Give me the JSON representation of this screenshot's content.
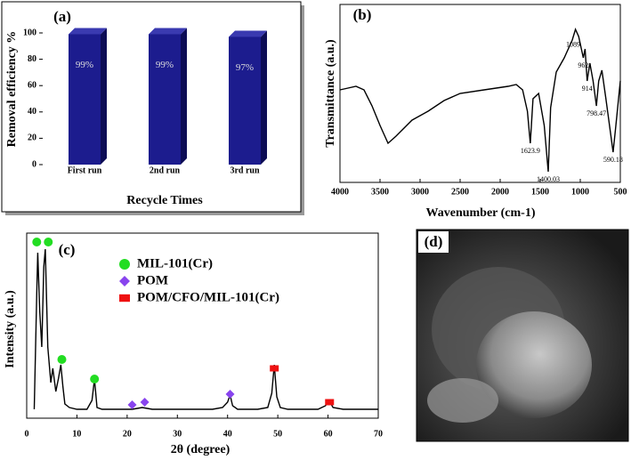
{
  "chart_data": [
    {
      "type": "bar",
      "panel_label": "(a)",
      "y_label": "Removal efficiency %",
      "x_label": "Recycle Times",
      "categories": [
        "First run",
        "2nd run",
        "3rd run"
      ],
      "values": [
        99,
        99,
        97
      ],
      "value_labels": [
        "99%",
        "99%",
        "97%"
      ],
      "color": "#1c1c8e",
      "ylim": [
        -10,
        120
      ],
      "yticks": [
        0,
        20,
        40,
        60,
        80,
        100
      ]
    },
    {
      "type": "line",
      "panel_label": "(b)",
      "y_label": "Transmittance (a.u.)",
      "x_label": "Wavenumber (cm-1)",
      "x": [
        4000,
        3900,
        3800,
        3700,
        3600,
        3500,
        3400,
        3300,
        3100,
        2900,
        2700,
        2500,
        2200,
        1900,
        1800,
        1720,
        1660,
        1623.9,
        1590,
        1520,
        1450,
        1400.03,
        1370,
        1300,
        1200,
        1100,
        1060,
        1020,
        962,
        940,
        914,
        880,
        840,
        798.47,
        770,
        730,
        680,
        620,
        590.18,
        560,
        500
      ],
      "values": [
        52,
        53,
        54,
        52,
        43,
        32,
        22,
        26,
        35,
        40,
        46,
        50,
        52,
        54,
        55,
        52,
        40,
        22,
        47,
        50,
        32,
        6,
        42,
        62,
        70,
        80,
        86,
        82,
        70,
        75,
        57,
        67,
        57,
        43,
        57,
        63,
        47,
        27,
        17,
        30,
        57
      ],
      "color": "#000000",
      "xlim": [
        4000,
        500
      ],
      "ylim": [
        0,
        100
      ],
      "xticks": [
        4000,
        3500,
        3000,
        2500,
        2000,
        1500,
        1000,
        500
      ],
      "annotations": [
        {
          "text": "1623.9",
          "x": 1623.9
        },
        {
          "text": "1400.03",
          "x": 1400.03
        },
        {
          "text": "1089",
          "x": 1089
        },
        {
          "text": "962",
          "x": 962
        },
        {
          "text": "914",
          "x": 914
        },
        {
          "text": "798.47",
          "x": 798.47
        },
        {
          "text": "590.18",
          "x": 590.18
        }
      ]
    },
    {
      "type": "line",
      "panel_label": "(c)",
      "y_label": "Intensity (a.u.)",
      "x_label": "2θ (degree)",
      "x": [
        1.5,
        2,
        2.2,
        2.6,
        3,
        3.4,
        3.7,
        4.2,
        4.8,
        5.2,
        5.8,
        6.3,
        6.8,
        7.2,
        7.6,
        8.5,
        10,
        12,
        13,
        13.5,
        14,
        15,
        17,
        19,
        21,
        23,
        25,
        28,
        31,
        34,
        37,
        39,
        40,
        40.5,
        41,
        42,
        44,
        46,
        48,
        48.8,
        49.3,
        49.8,
        50.5,
        52,
        55,
        58,
        59.5,
        60.2,
        61,
        63,
        66,
        70
      ],
      "values": [
        5,
        70,
        93,
        60,
        40,
        85,
        95,
        40,
        20,
        28,
        15,
        22,
        30,
        18,
        8,
        6,
        5,
        5,
        10,
        22,
        6,
        5,
        5,
        5,
        5,
        6,
        5,
        5,
        5,
        5,
        5,
        6,
        9,
        13,
        7,
        5,
        5,
        5,
        6,
        14,
        30,
        12,
        6,
        5,
        5,
        5,
        7,
        10,
        6,
        5,
        5,
        5
      ],
      "color": "#000000",
      "xlim": [
        0,
        70
      ],
      "ylim": [
        0,
        100
      ],
      "xticks": [
        0,
        10,
        20,
        30,
        40,
        50,
        60,
        70
      ],
      "markers": [
        {
          "name": "MIL-101(Cr)",
          "color": "#22dd22",
          "shape": "circle",
          "x": [
            2,
            4.3,
            7,
            13.5
          ],
          "values": [
            99,
            99,
            33,
            22
          ]
        },
        {
          "name": "POM",
          "color": "#8844ee",
          "shape": "diamond",
          "x": [
            21,
            23.5,
            40.5
          ],
          "values": [
            7.5,
            9,
            13.5
          ]
        },
        {
          "name": "POM/CFO/MIL-101(Cr)",
          "color": "#ee1111",
          "shape": "square",
          "x": [
            49.3,
            60.3
          ],
          "values": [
            28,
            9
          ]
        }
      ]
    }
  ],
  "image_panel": {
    "panel_label": "(d)"
  }
}
